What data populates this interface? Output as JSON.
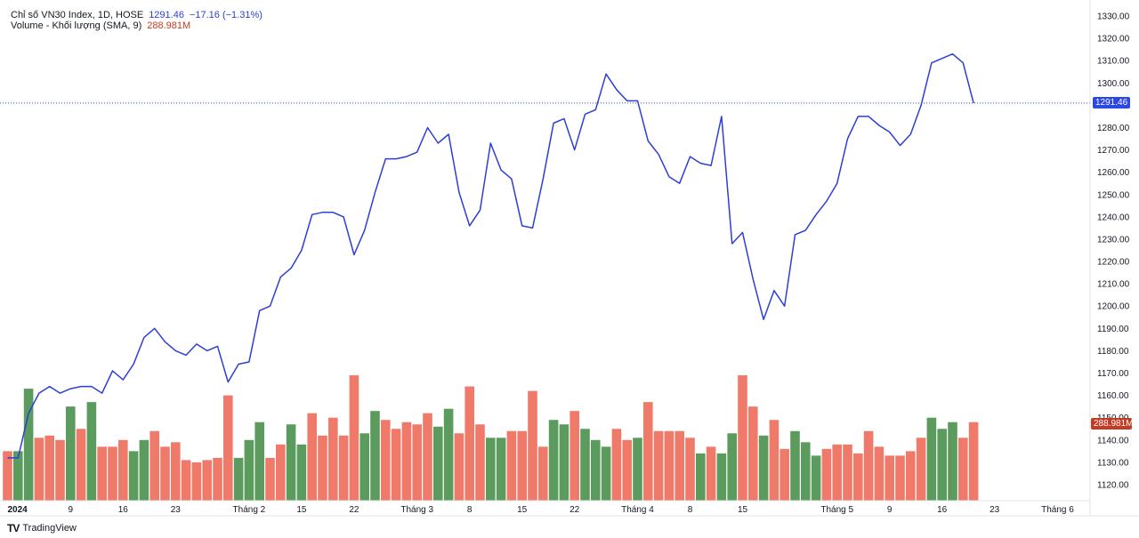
{
  "header": {
    "series_name": "Chỉ số VN30 Index, 1D, HOSE",
    "last_value": "1291.46",
    "change": "−17.16 (−1.31%)",
    "volume_name": "Volume - Khối lượng (SMA, 9)",
    "volume_value": "288.981M"
  },
  "price_tag": "1291.46",
  "volume_tag": "288.981M",
  "footer": {
    "brand": "TradingView",
    "brand_icon": "tradingview-logo-icon"
  },
  "colors": {
    "line": "#2b3fd6",
    "up_volume": "#5b9b5e",
    "down_volume": "#f07a6a"
  },
  "chart_data": {
    "type": "line",
    "y_axis": {
      "ylim": [
        1113,
        1333
      ],
      "ticks": [
        1120,
        1130,
        1140,
        1150,
        1160,
        1170,
        1180,
        1190,
        1200,
        1210,
        1220,
        1230,
        1240,
        1250,
        1260,
        1270,
        1280,
        1290,
        1300,
        1310,
        1320,
        1330
      ]
    },
    "x_ticks": [
      {
        "label": "2024",
        "i": 0,
        "bold": true
      },
      {
        "label": "9",
        "i": 6
      },
      {
        "label": "16",
        "i": 11
      },
      {
        "label": "23",
        "i": 16
      },
      {
        "label": "Tháng 2",
        "i": 23
      },
      {
        "label": "15",
        "i": 28
      },
      {
        "label": "22",
        "i": 33
      },
      {
        "label": "Tháng 3",
        "i": 39
      },
      {
        "label": "8",
        "i": 44
      },
      {
        "label": "15",
        "i": 49
      },
      {
        "label": "22",
        "i": 54
      },
      {
        "label": "Tháng 4",
        "i": 60
      },
      {
        "label": "8",
        "i": 65
      },
      {
        "label": "15",
        "i": 70
      },
      {
        "label": "Tháng 5",
        "i": 79
      },
      {
        "label": "9",
        "i": 84
      },
      {
        "label": "16",
        "i": 89
      },
      {
        "label": "23",
        "i": 94
      },
      {
        "label": "Tháng 6",
        "i": 100
      }
    ],
    "series": [
      {
        "name": "VN30",
        "values": [
          1132,
          1132,
          1152,
          1161,
          1164,
          1161,
          1163,
          1164,
          1164,
          1161,
          1171,
          1167,
          1174,
          1186,
          1190,
          1184,
          1180,
          1178,
          1183,
          1180,
          1182,
          1166,
          1174,
          1175,
          1198,
          1200,
          1213,
          1217,
          1225,
          1241,
          1242,
          1242,
          1240,
          1223,
          1234,
          1251,
          1266,
          1266,
          1267,
          1269,
          1280,
          1273,
          1277,
          1251,
          1236,
          1243,
          1273,
          1261,
          1257,
          1236,
          1235,
          1257,
          1282,
          1284,
          1270,
          1286,
          1288,
          1304,
          1297,
          1292,
          1292,
          1274,
          1268,
          1258,
          1255,
          1267,
          1264,
          1263,
          1285,
          1228,
          1233,
          1212,
          1194,
          1207,
          1200,
          1232,
          1234,
          1241,
          1247,
          1255,
          1275,
          1285,
          1285,
          1281,
          1278,
          1272,
          1277,
          1290,
          1309,
          1311,
          1313,
          1309,
          1291
        ]
      }
    ],
    "volume": {
      "ylim": [
        1113,
        1333
      ],
      "values": [
        1135,
        1135,
        1163,
        1141,
        1142,
        1140,
        1155,
        1145,
        1157,
        1137,
        1137,
        1140,
        1135,
        1140,
        1144,
        1137,
        1139,
        1131,
        1130,
        1131,
        1132,
        1160,
        1132,
        1140,
        1148,
        1132,
        1138,
        1147,
        1138,
        1152,
        1142,
        1150,
        1142,
        1169,
        1143,
        1153,
        1149,
        1145,
        1148,
        1147,
        1152,
        1146,
        1154,
        1143,
        1164,
        1147,
        1141,
        1141,
        1144,
        1144,
        1162,
        1137,
        1149,
        1147,
        1153,
        1145,
        1140,
        1137,
        1145,
        1140,
        1141,
        1157,
        1144,
        1144,
        1144,
        1141,
        1134,
        1137,
        1134,
        1143,
        1169,
        1155,
        1142,
        1149,
        1136,
        1144,
        1139,
        1133,
        1136,
        1138,
        1138,
        1134,
        1144,
        1137,
        1133,
        1133,
        1135,
        1141,
        1150,
        1145,
        1148,
        1141,
        1148
      ],
      "up": [
        0,
        1,
        1,
        0,
        0,
        0,
        1,
        0,
        1,
        0,
        1,
        0,
        1,
        1,
        0,
        0,
        0,
        0,
        0,
        0,
        1,
        0,
        1,
        1,
        1,
        0,
        1,
        1,
        1,
        1,
        0,
        1,
        0,
        0,
        1,
        1,
        0,
        0,
        0,
        0,
        0,
        1,
        1,
        0,
        0,
        0,
        1,
        1,
        0,
        0,
        0,
        0,
        1,
        1,
        0,
        1,
        1,
        1,
        0,
        0,
        1,
        1,
        0,
        0,
        0,
        0,
        1,
        0,
        1,
        1,
        0,
        0,
        1,
        1,
        0,
        1,
        1,
        1,
        0,
        0,
        1,
        1,
        0,
        0,
        1,
        0,
        0,
        0,
        1,
        1,
        1,
        0,
        0
      ],
      "down_overrides": [
        5,
        10,
        15,
        16,
        17,
        19,
        20,
        21,
        26,
        29,
        31,
        33,
        36,
        37,
        38,
        39,
        40,
        44,
        45,
        48,
        49,
        50,
        51,
        54,
        58,
        59,
        61,
        63,
        64,
        65,
        67,
        70,
        71,
        73,
        74,
        80,
        81,
        84,
        85,
        86,
        91,
        92
      ]
    }
  }
}
